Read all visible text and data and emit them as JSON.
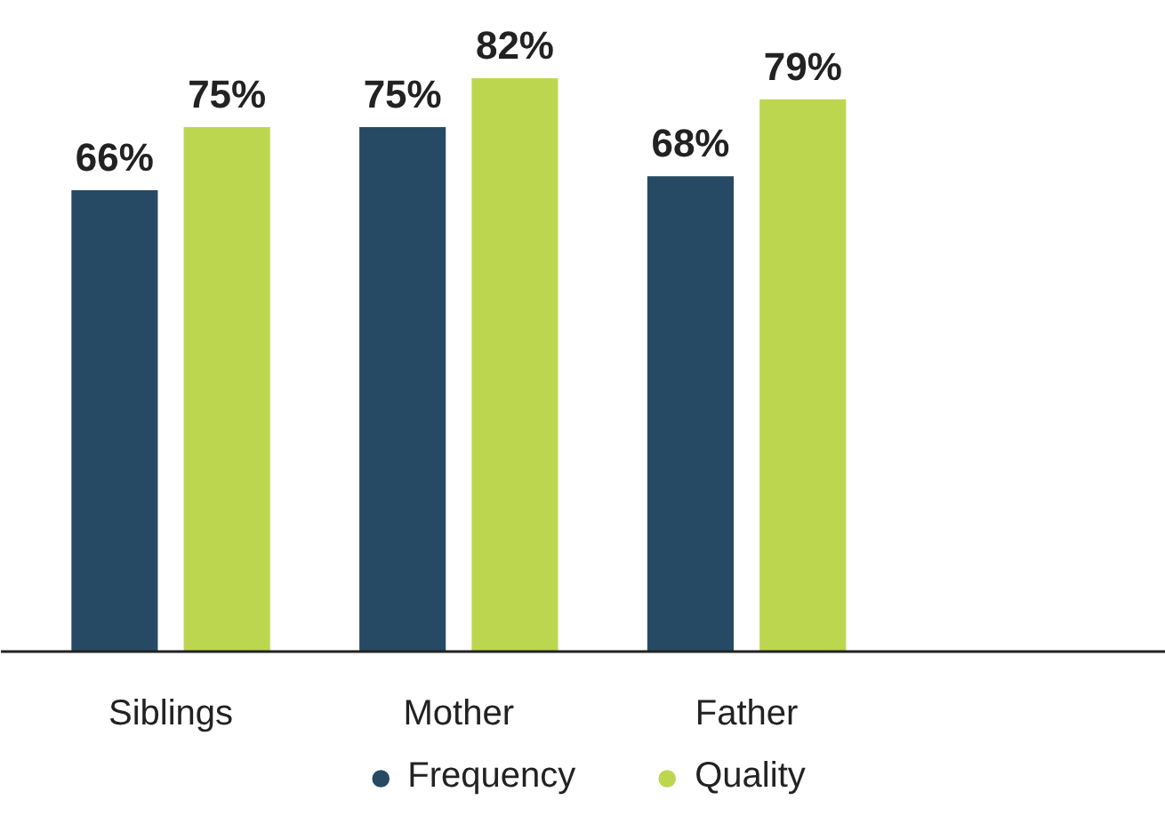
{
  "chart_data": {
    "type": "bar",
    "categories": [
      "Siblings",
      "Mother",
      "Father"
    ],
    "series": [
      {
        "name": "Frequency",
        "color": "#264a63",
        "values": [
          66,
          75,
          68
        ],
        "value_labels": [
          "66%",
          "75%",
          "68%"
        ]
      },
      {
        "name": "Quality",
        "color": "#bcd74f",
        "values": [
          75,
          82,
          79
        ],
        "value_labels": [
          "75%",
          "82%",
          "79%"
        ]
      }
    ],
    "legend": "bottom",
    "grid": false
  }
}
